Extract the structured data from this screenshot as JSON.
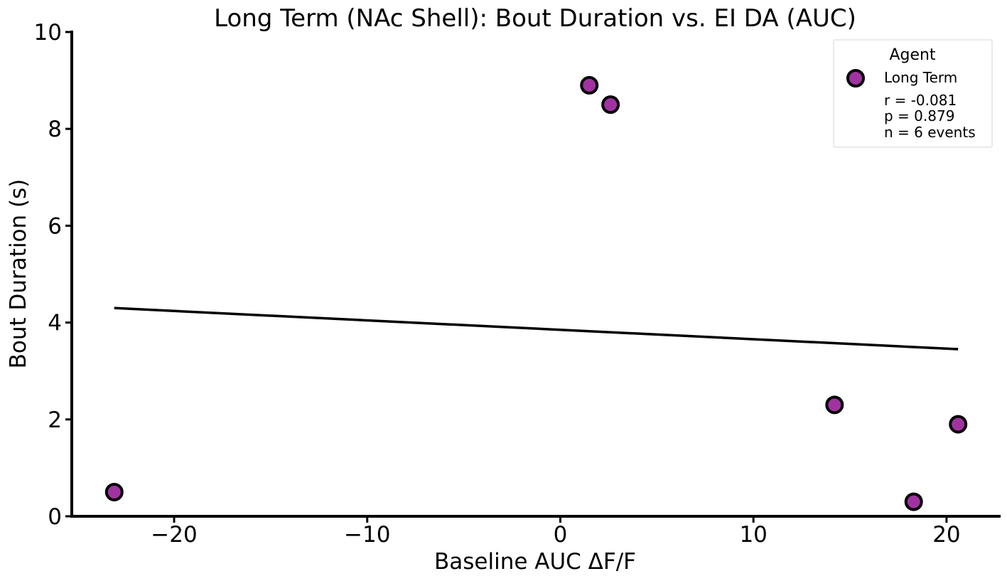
{
  "chart_data": {
    "type": "scatter",
    "title": "Long Term (NAc Shell): Bout Duration vs. EI DA (AUC)",
    "xlabel": "Baseline AUC ΔF/F",
    "ylabel": "Bout Duration (s)",
    "xlim": [
      -25.3,
      22.8
    ],
    "ylim": [
      0,
      10
    ],
    "xticks": [
      -20,
      -10,
      0,
      10,
      20
    ],
    "xtick_labels": [
      "−20",
      "−10",
      "0",
      "10",
      "20"
    ],
    "yticks": [
      0,
      2,
      4,
      6,
      8,
      10
    ],
    "ytick_labels": [
      "0",
      "2",
      "4",
      "6",
      "8",
      "10"
    ],
    "grid": false,
    "series": [
      {
        "name": "Long Term",
        "color": "#a033a0",
        "points": [
          {
            "x": -23.1,
            "y": 0.5
          },
          {
            "x": 1.5,
            "y": 8.9
          },
          {
            "x": 2.6,
            "y": 8.5
          },
          {
            "x": 14.2,
            "y": 2.3
          },
          {
            "x": 18.3,
            "y": 0.3
          },
          {
            "x": 20.6,
            "y": 1.9
          }
        ]
      }
    ],
    "fit_line": {
      "x": [
        -23.1,
        20.6
      ],
      "y": [
        4.3,
        3.45
      ],
      "color": "#000000"
    },
    "legend": {
      "title": "Agent",
      "position": "top-right",
      "entries": [
        "Long Term"
      ],
      "stats": [
        "r = -0.081",
        "p = 0.879",
        "n = 6 events"
      ]
    }
  }
}
